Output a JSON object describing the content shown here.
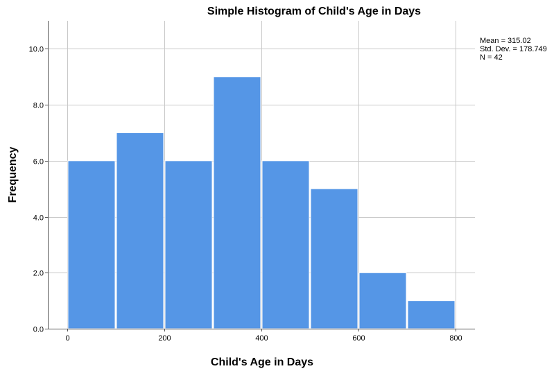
{
  "colors": {
    "bar_fill": "#5596e6",
    "bar_stroke": "#ffffff",
    "grid": "#c8c8c8",
    "axis": "#555555"
  },
  "chart_data": {
    "type": "bar",
    "title": "Simple Histogram of Child's Age in Days",
    "xlabel": "Child's Age in Days",
    "ylabel": "Frequency",
    "bins": [
      {
        "start": 0,
        "end": 100,
        "count": 6
      },
      {
        "start": 100,
        "end": 200,
        "count": 7
      },
      {
        "start": 200,
        "end": 300,
        "count": 6
      },
      {
        "start": 300,
        "end": 400,
        "count": 9
      },
      {
        "start": 400,
        "end": 500,
        "count": 6
      },
      {
        "start": 500,
        "end": 600,
        "count": 5
      },
      {
        "start": 600,
        "end": 700,
        "count": 2
      },
      {
        "start": 700,
        "end": 800,
        "count": 1
      }
    ],
    "xlim": [
      -40,
      840
    ],
    "ylim": [
      0,
      11
    ],
    "x_ticks": [
      {
        "value": 0,
        "label": "0"
      },
      {
        "value": 200,
        "label": "200"
      },
      {
        "value": 400,
        "label": "400"
      },
      {
        "value": 600,
        "label": "600"
      },
      {
        "value": 800,
        "label": "800"
      }
    ],
    "y_ticks": [
      {
        "value": 0,
        "label": "0.0"
      },
      {
        "value": 2,
        "label": "2.0"
      },
      {
        "value": 4,
        "label": "4.0"
      },
      {
        "value": 6,
        "label": "6.0"
      },
      {
        "value": 8,
        "label": "8.0"
      },
      {
        "value": 10,
        "label": "10.0"
      }
    ],
    "grid": true,
    "stats": {
      "mean": "Mean = 315.02",
      "std_dev": "Std. Dev. = 178.749",
      "n": "N = 42"
    },
    "stats_placement": "top-right"
  }
}
